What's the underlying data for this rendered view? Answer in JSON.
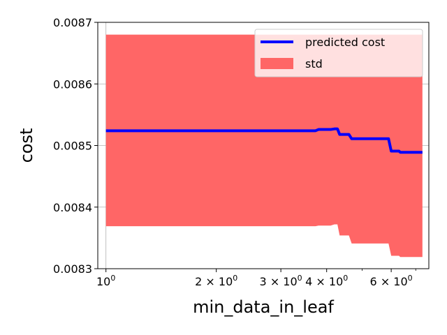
{
  "chart_data": {
    "type": "line",
    "title": "",
    "xlabel": "min_data_in_leaf",
    "ylabel": "cost",
    "xscale": "log",
    "xlim": [
      0.95,
      7.6
    ],
    "ylim": [
      0.0083,
      0.0087
    ],
    "grid": true,
    "legend_position": "top-right",
    "x_ticks": [
      {
        "value": 1,
        "label": "10",
        "sup": "0"
      },
      {
        "value": 2,
        "label": "2 × 10",
        "sup": "0"
      },
      {
        "value": 3,
        "label": "3 × 10",
        "sup": "0"
      },
      {
        "value": 4,
        "label": "4 × 10",
        "sup": "0"
      },
      {
        "value": 6,
        "label": "6 × 10",
        "sup": "0"
      }
    ],
    "x_minor_ticks": [
      5,
      7
    ],
    "y_ticks": [
      {
        "value": 0.0083,
        "label": "0.0083"
      },
      {
        "value": 0.0084,
        "label": "0.0084"
      },
      {
        "value": 0.0085,
        "label": "0.0085"
      },
      {
        "value": 0.0086,
        "label": "0.0086"
      },
      {
        "value": 0.0087,
        "label": "0.0087"
      }
    ],
    "series": [
      {
        "name": "predicted cost",
        "type": "line",
        "color": "#0000ff",
        "x": [
          1,
          3.73,
          3.8,
          4.1,
          4.2,
          4.28,
          4.34,
          4.6,
          4.68,
          5.9,
          6.0,
          6.3,
          6.35,
          7.3
        ],
        "y": [
          0.008524,
          0.008524,
          0.008526,
          0.008526,
          0.008527,
          0.008527,
          0.008518,
          0.008518,
          0.008511,
          0.008511,
          0.008491,
          0.008491,
          0.008489,
          0.008489
        ]
      },
      {
        "name": "std",
        "type": "area",
        "color": "#ff6666",
        "x": [
          1,
          3.73,
          3.8,
          4.1,
          4.2,
          4.28,
          4.34,
          4.6,
          4.68,
          5.9,
          6.0,
          6.3,
          6.35,
          7.3
        ],
        "upper": [
          0.00868,
          0.00868,
          0.00868,
          0.00868,
          0.00868,
          0.00868,
          0.00868,
          0.00868,
          0.00868,
          0.00868,
          0.00868,
          0.00868,
          0.00868,
          0.00868
        ],
        "lower": [
          0.008369,
          0.008369,
          0.00837,
          0.00837,
          0.008372,
          0.008372,
          0.008354,
          0.008354,
          0.008341,
          0.008341,
          0.008321,
          0.008321,
          0.008319,
          0.008319
        ]
      }
    ]
  }
}
